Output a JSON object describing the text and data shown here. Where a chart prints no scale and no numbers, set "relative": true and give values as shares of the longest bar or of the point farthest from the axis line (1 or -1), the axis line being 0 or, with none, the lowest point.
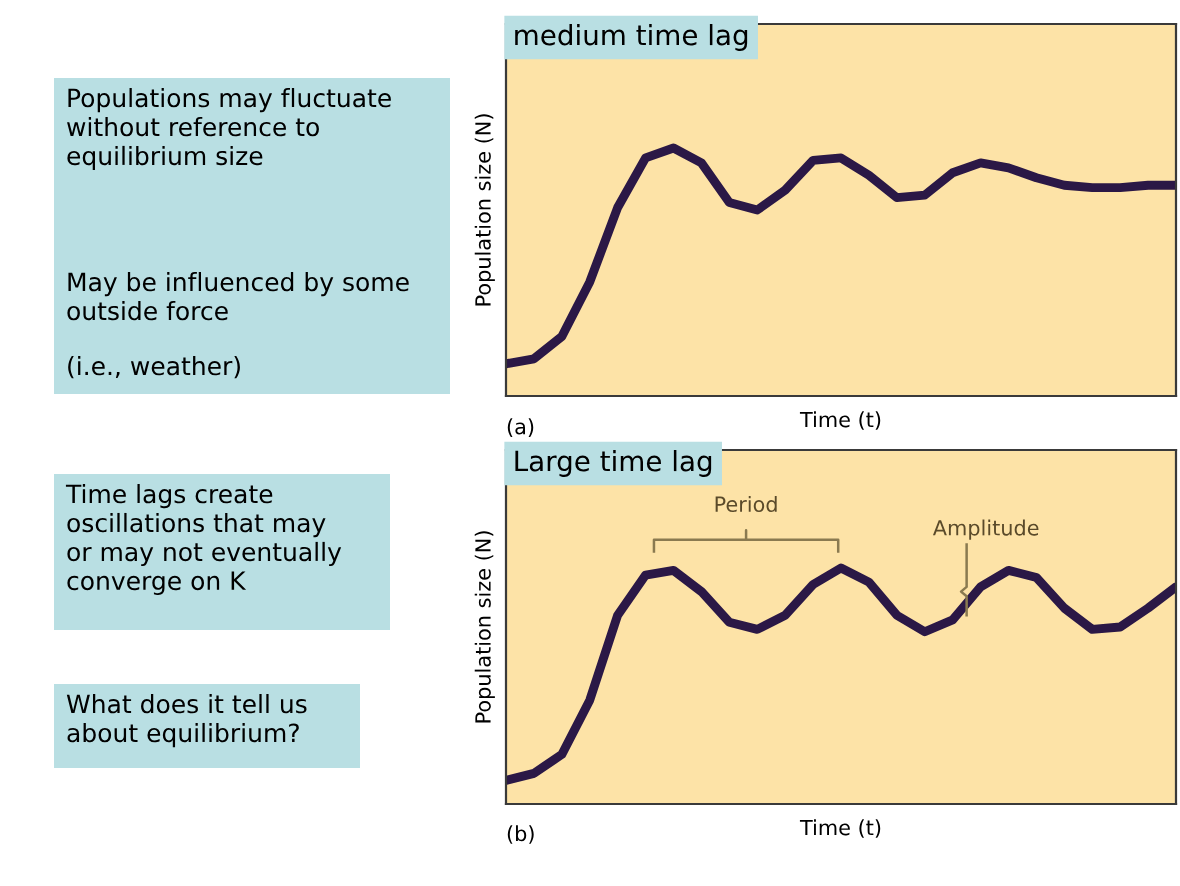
{
  "chart_data": [
    {
      "type": "other",
      "annotations": [
        "Populations may fluctuate\nwithout reference to\nequilibrium size",
        "May be influenced by some\noutside force",
        "(i.e., weather)",
        "Time lags create\noscillations that may\nor may not eventually\nconverge on K",
        "What does it tell us\nabout equilibrium?"
      ]
    },
    {
      "type": "line",
      "title": "medium time lag",
      "xlabel": "Time (t)",
      "ylabel": "Population size (N)",
      "relative": true,
      "annotations": [
        "(a)"
      ],
      "categories": [
        null,
        null,
        null,
        null,
        null,
        null,
        null,
        null,
        null,
        null,
        null,
        null,
        null,
        null,
        null,
        null,
        null,
        null,
        null,
        null,
        null,
        null,
        null,
        null,
        null
      ],
      "series": [
        {
          "color": "#2b1846",
          "values": [
            0.13,
            0.15,
            0.24,
            0.46,
            0.76,
            0.96,
            1.0,
            0.94,
            0.78,
            0.75,
            0.83,
            0.95,
            0.96,
            0.89,
            0.8,
            0.81,
            0.9,
            0.94,
            0.92,
            0.88,
            0.85,
            0.84,
            0.84,
            0.85,
            0.85
          ]
        }
      ],
      "marker": "none",
      "line_style": "solid",
      "grid": false,
      "legend": false
    },
    {
      "type": "line",
      "title": "Large time lag",
      "xlabel": "Time (t)",
      "ylabel": "Population size (N)",
      "relative": true,
      "annotations": [
        "Period",
        "Amplitude",
        "(b)"
      ],
      "categories": [
        null,
        null,
        null,
        null,
        null,
        null,
        null,
        null,
        null,
        null,
        null,
        null,
        null,
        null,
        null,
        null,
        null,
        null,
        null,
        null,
        null,
        null,
        null,
        null,
        null
      ],
      "series": [
        {
          "color": "#2b1846",
          "values": [
            0.1,
            0.13,
            0.21,
            0.44,
            0.8,
            0.97,
            0.99,
            0.9,
            0.77,
            0.74,
            0.8,
            0.93,
            1.0,
            0.94,
            0.8,
            0.73,
            0.78,
            0.92,
            0.99,
            0.96,
            0.83,
            0.74,
            0.75,
            0.83,
            0.92
          ]
        }
      ],
      "marker": "none",
      "line_style": "solid",
      "grid": false,
      "legend": false
    }
  ]
}
